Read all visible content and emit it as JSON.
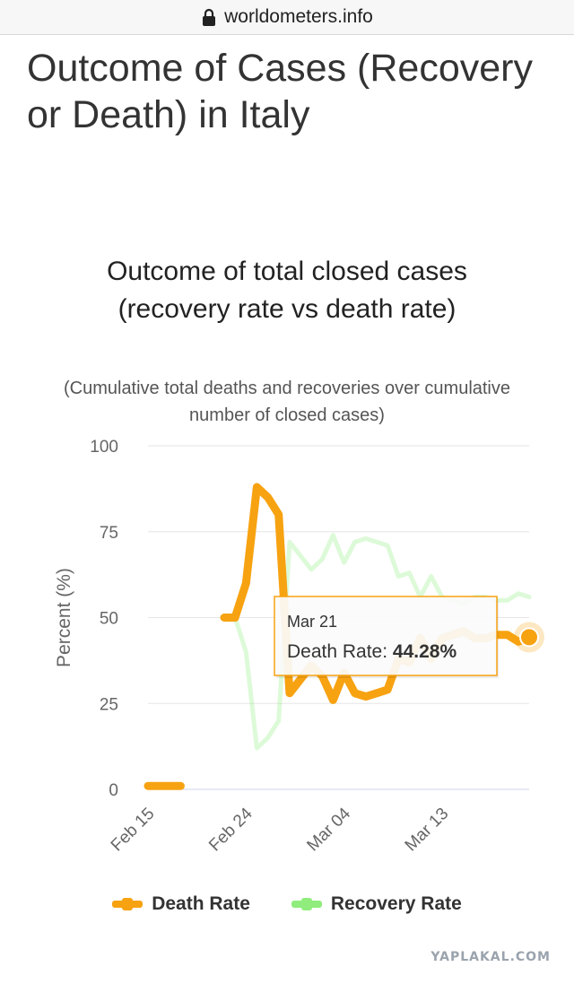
{
  "browser": {
    "url": "worldometers.info",
    "lock_icon": "lock-icon"
  },
  "page": {
    "title": "Outcome of Cases (Recovery or Death) in Italy"
  },
  "watermark": "YAPLAKAL.COM",
  "chart_data": {
    "type": "line",
    "title": "Outcome of total closed cases (recovery rate vs death rate)",
    "subtitle": "(Cumulative total deaths and recoveries over cumulative number of closed cases)",
    "ylabel": "Percent (%)",
    "xlabel": "",
    "ylim": [
      0,
      100
    ],
    "yticks": [
      "0",
      "25",
      "50",
      "75",
      "100"
    ],
    "x_tick_labels": [
      "Feb 15",
      "Feb 24",
      "Mar 04",
      "Mar 13"
    ],
    "grid": true,
    "legend_position": "bottom",
    "x": [
      "Feb 15",
      "Feb 16",
      "Feb 17",
      "Feb 18",
      "Feb 19",
      "Feb 20",
      "Feb 21",
      "Feb 22",
      "Feb 23",
      "Feb 24",
      "Feb 25",
      "Feb 26",
      "Feb 27",
      "Feb 28",
      "Feb 29",
      "Mar 01",
      "Mar 02",
      "Mar 03",
      "Mar 04",
      "Mar 05",
      "Mar 06",
      "Mar 07",
      "Mar 08",
      "Mar 09",
      "Mar 10",
      "Mar 11",
      "Mar 12",
      "Mar 13",
      "Mar 14",
      "Mar 15",
      "Mar 16",
      "Mar 17",
      "Mar 18",
      "Mar 19",
      "Mar 20",
      "Mar 21"
    ],
    "series": [
      {
        "name": "Death Rate",
        "color": "#f7a211",
        "values": [
          1,
          1,
          1,
          1,
          null,
          null,
          null,
          50,
          50,
          60,
          88,
          85,
          80,
          28,
          32,
          36,
          33,
          26,
          34,
          28,
          27,
          28,
          29,
          38,
          37,
          44,
          38,
          44,
          45,
          46,
          44,
          44,
          45,
          45,
          43,
          44.28
        ]
      },
      {
        "name": "Recovery Rate",
        "color": "#90ed7d",
        "values": [
          null,
          null,
          null,
          null,
          null,
          null,
          null,
          50,
          50,
          40,
          12,
          15,
          20,
          72,
          68,
          64,
          67,
          74,
          66,
          72,
          73,
          72,
          71,
          62,
          63,
          56,
          62,
          56,
          55,
          54,
          56,
          56,
          55,
          55,
          57,
          56
        ]
      }
    ],
    "tooltip": {
      "date": "Mar 21",
      "series_label": "Death Rate: ",
      "value": "44.28%"
    }
  }
}
